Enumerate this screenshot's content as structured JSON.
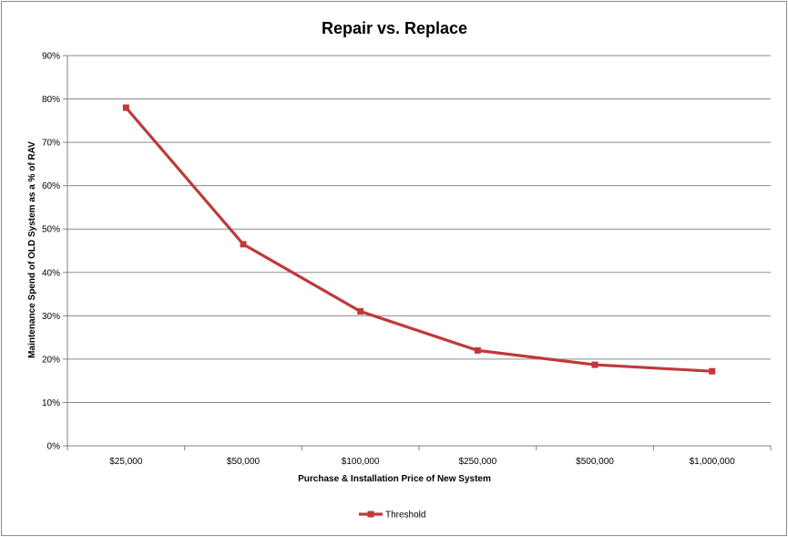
{
  "chart_data": {
    "type": "line",
    "title": "Repair vs. Replace",
    "xlabel": "Purchase & Installation Price of New System",
    "ylabel": "Maintenance Spend of OLD System as a % of RAV",
    "categories": [
      "$25,000",
      "$50,000",
      "$100,000",
      "$250,000",
      "$500,000",
      "$1,000,000"
    ],
    "series": [
      {
        "name": "Threshold",
        "values": [
          78,
          46.5,
          31,
          22,
          18.7,
          17.2
        ],
        "color": "#c0393b"
      }
    ],
    "ylim": [
      0,
      90
    ],
    "yticks": [
      0,
      10,
      20,
      30,
      40,
      50,
      60,
      70,
      80,
      90
    ],
    "ytick_labels": [
      "0%",
      "10%",
      "20%",
      "30%",
      "40%",
      "50%",
      "60%",
      "70%",
      "80%",
      "90%"
    ],
    "grid": true,
    "legend": "bottom-center"
  }
}
